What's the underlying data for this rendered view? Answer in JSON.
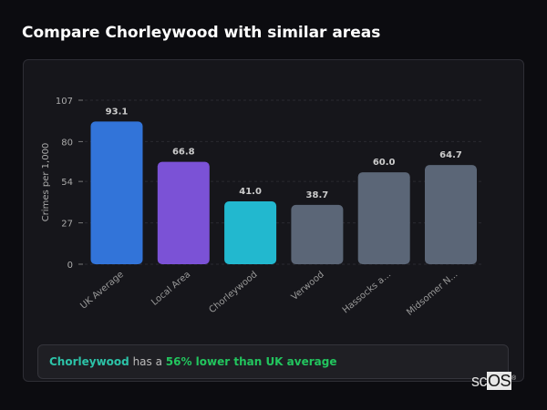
{
  "title": "Compare Chorleywood with similar areas",
  "chart_data": {
    "type": "bar",
    "title": "",
    "xlabel": "",
    "ylabel": "Crimes per 1,000",
    "ylim": [
      0,
      107
    ],
    "yticks": [
      0,
      27,
      54,
      80,
      107
    ],
    "grid": true,
    "categories": [
      "UK Average",
      "Local Area",
      "Chorleywood",
      "Verwood",
      "Hassocks a...",
      "Midsomer N..."
    ],
    "values": [
      93.1,
      66.8,
      41.0,
      38.7,
      60.0,
      64.7
    ],
    "value_labels": [
      "93.1",
      "66.8",
      "41.0",
      "38.7",
      "60.0",
      "64.7"
    ],
    "colors": [
      "#3274d9",
      "#7b52d6",
      "#22b8cf",
      "#5b6677",
      "#5b6677",
      "#5b6677"
    ]
  },
  "summary": {
    "area": "Chorleywood",
    "middle": " has a ",
    "comparison": "56% lower than UK average"
  },
  "logo": {
    "text_a": "sc",
    "text_b": "OS",
    "mark": "®"
  }
}
